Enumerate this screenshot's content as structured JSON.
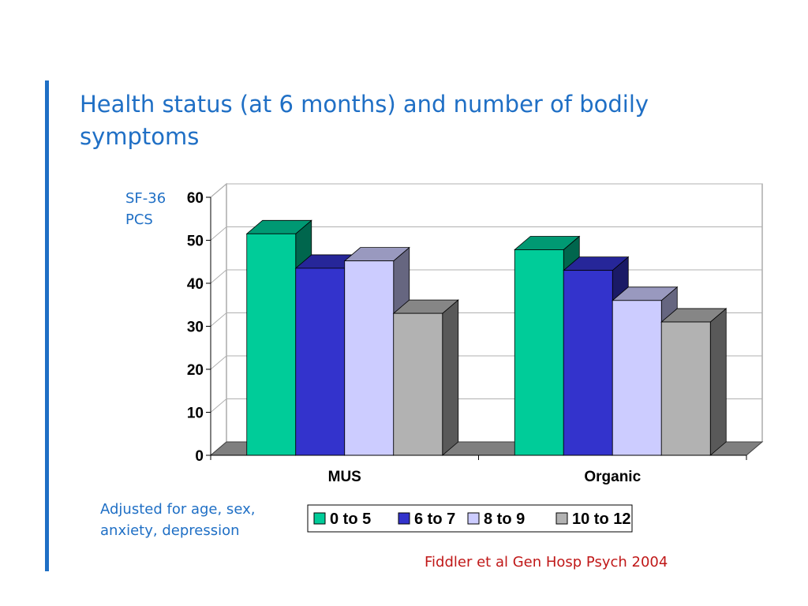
{
  "slide": {
    "title": "Health status (at 6 months) and number of bodily symptoms",
    "y_axis_label": "SF-36 PCS",
    "note": "Adjusted for age, sex, anxiety, depression",
    "source": "Fiddler et al Gen Hosp Psych 2004"
  },
  "colors": {
    "accent": "#1f6fc5",
    "source_text": "#c01818"
  },
  "chart_data": {
    "type": "bar",
    "style": "3d-clustered",
    "categories": [
      "MUS",
      "Organic"
    ],
    "series": [
      {
        "name": "0 to 5",
        "values": [
          51.5,
          47.8
        ],
        "color": "#00cc99"
      },
      {
        "name": "6 to 7",
        "values": [
          43.5,
          43.0
        ],
        "color": "#3333cc"
      },
      {
        "name": "8 to 9",
        "values": [
          45.2,
          36.0
        ],
        "color": "#ccccff"
      },
      {
        "name": "10 to 12",
        "values": [
          33.0,
          31.0
        ],
        "color": "#b2b2b2"
      }
    ],
    "ylim": [
      0,
      60
    ],
    "yticks": [
      0,
      10,
      20,
      30,
      40,
      50,
      60
    ],
    "grid": true,
    "legend_position": "bottom"
  }
}
